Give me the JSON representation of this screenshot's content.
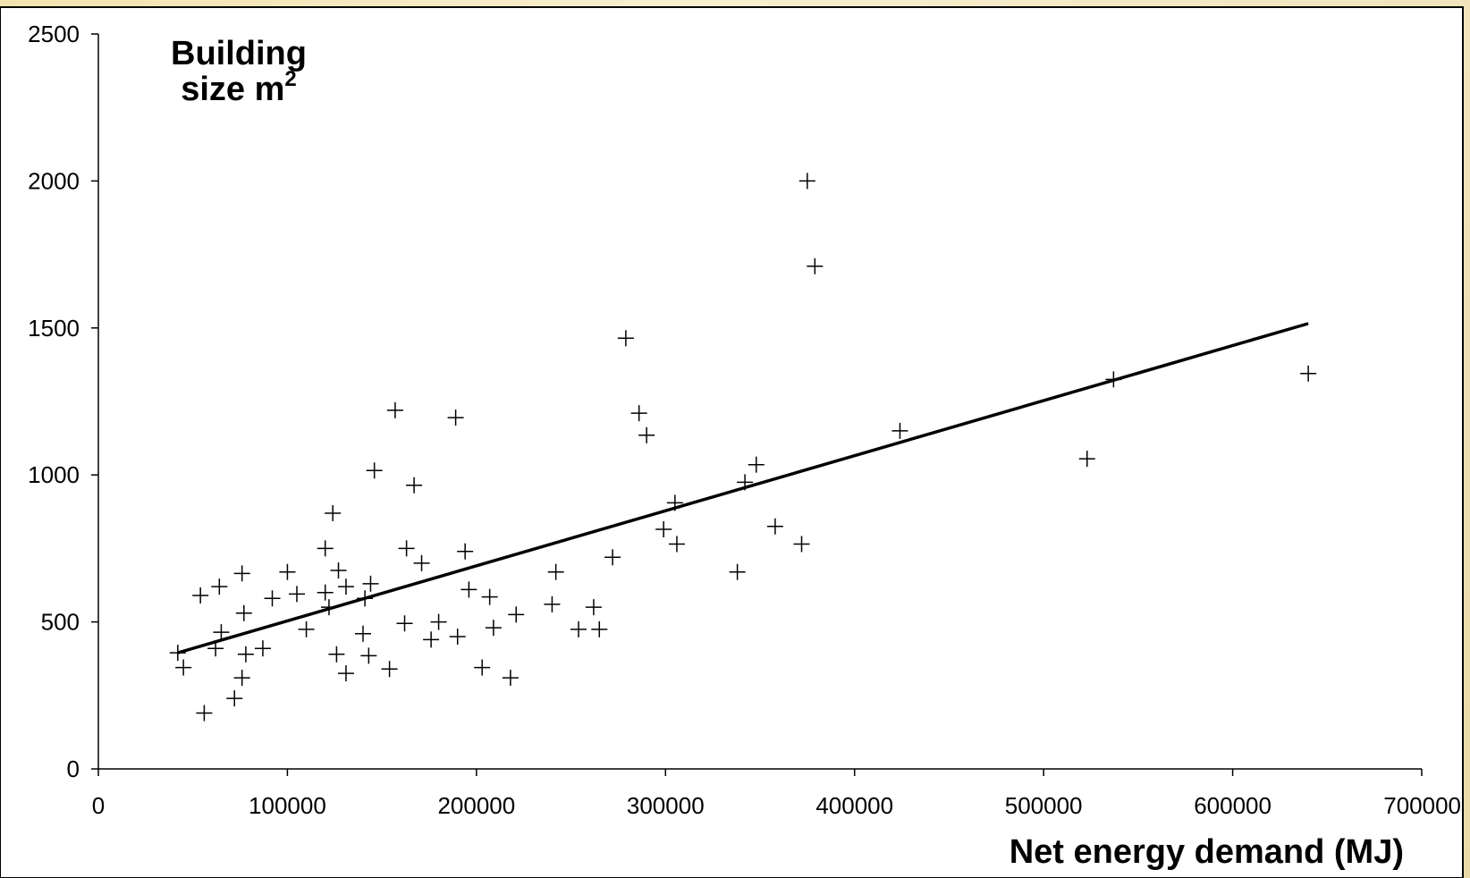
{
  "chart_data": {
    "type": "scatter",
    "xlabel": "Net energy demand (MJ)",
    "ylabel": {
      "line1": "Building",
      "line2": "size m",
      "superscript": "2"
    },
    "xlim": [
      0,
      700000
    ],
    "ylim": [
      0,
      2500
    ],
    "x_ticks": [
      0,
      100000,
      200000,
      300000,
      400000,
      500000,
      600000,
      700000
    ],
    "y_ticks": [
      0,
      500,
      1000,
      1500,
      2000,
      2500
    ],
    "x_tick_labels": [
      "0",
      "100000",
      "200000",
      "300000",
      "400000",
      "500000",
      "600000",
      "700000"
    ],
    "y_tick_labels": [
      "0",
      "500",
      "1000",
      "1500",
      "2000",
      "2500"
    ],
    "grid": false,
    "marker": "plus",
    "colors": {
      "marker": "#000000",
      "trendline": "#000000",
      "plot_bg": "#ffffff",
      "page_bg": "#f3e3b0"
    },
    "points": [
      [
        42000,
        395
      ],
      [
        45000,
        345
      ],
      [
        54000,
        590
      ],
      [
        56000,
        190
      ],
      [
        62000,
        410
      ],
      [
        64000,
        620
      ],
      [
        65000,
        465
      ],
      [
        72000,
        240
      ],
      [
        76000,
        310
      ],
      [
        76000,
        665
      ],
      [
        77000,
        530
      ],
      [
        78000,
        390
      ],
      [
        87000,
        410
      ],
      [
        92000,
        580
      ],
      [
        100000,
        670
      ],
      [
        105000,
        595
      ],
      [
        110000,
        475
      ],
      [
        120000,
        750
      ],
      [
        120000,
        600
      ],
      [
        122000,
        550
      ],
      [
        124000,
        870
      ],
      [
        126000,
        390
      ],
      [
        127000,
        675
      ],
      [
        131000,
        325
      ],
      [
        131000,
        620
      ],
      [
        140000,
        460
      ],
      [
        141000,
        580
      ],
      [
        143000,
        385
      ],
      [
        144000,
        630
      ],
      [
        146000,
        1015
      ],
      [
        154000,
        340
      ],
      [
        157000,
        1220
      ],
      [
        162000,
        495
      ],
      [
        163000,
        750
      ],
      [
        167000,
        965
      ],
      [
        171000,
        700
      ],
      [
        176000,
        440
      ],
      [
        180000,
        500
      ],
      [
        189000,
        1195
      ],
      [
        190000,
        450
      ],
      [
        194000,
        740
      ],
      [
        196000,
        610
      ],
      [
        203000,
        345
      ],
      [
        207000,
        585
      ],
      [
        209000,
        480
      ],
      [
        218000,
        310
      ],
      [
        221000,
        525
      ],
      [
        240000,
        560
      ],
      [
        242000,
        670
      ],
      [
        254000,
        475
      ],
      [
        262000,
        550
      ],
      [
        265000,
        475
      ],
      [
        272000,
        720
      ],
      [
        279000,
        1465
      ],
      [
        286000,
        1210
      ],
      [
        290000,
        1135
      ],
      [
        299000,
        815
      ],
      [
        305000,
        905
      ],
      [
        306000,
        765
      ],
      [
        338000,
        670
      ],
      [
        342000,
        975
      ],
      [
        348000,
        1035
      ],
      [
        358000,
        825
      ],
      [
        372000,
        765
      ],
      [
        375000,
        2000
      ],
      [
        379000,
        1710
      ],
      [
        424000,
        1150
      ],
      [
        523000,
        1055
      ],
      [
        537000,
        1325
      ],
      [
        640000,
        1345
      ]
    ],
    "trendline": {
      "x": [
        42000,
        640000
      ],
      "y": [
        395,
        1515
      ]
    }
  }
}
